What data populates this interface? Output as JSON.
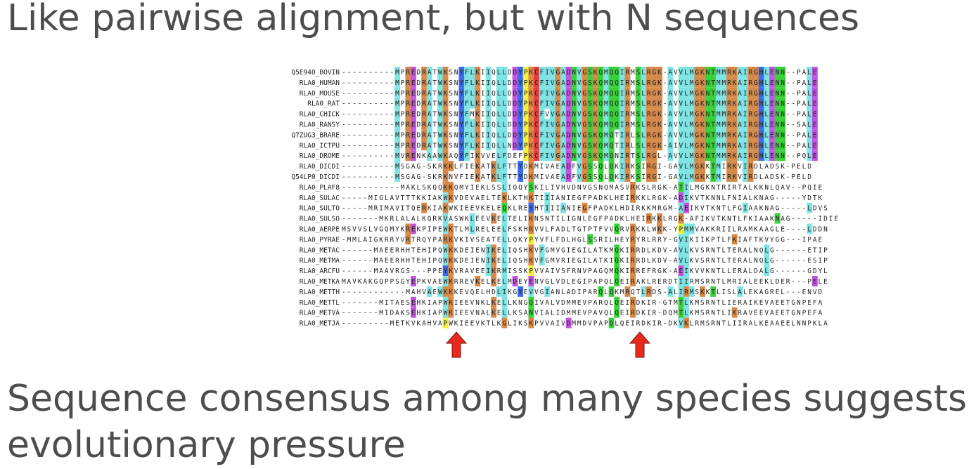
{
  "heading": "Like pairwise alignment, but with N sequences",
  "caption": "Sequence consensus among many species suggests evolutionary pressure",
  "alignment": {
    "names": [
      "Q5E940_BOVIN",
      "RLA0_HUMAN",
      "RLA0_MOUSE",
      "RLA0_RAT",
      "RLA0_CHICK",
      "RLA0_RANSY",
      "Q7ZUG3_BRARE",
      "RLA0_ICTPU",
      "RLA0_DROME",
      "RLA0_DICDI",
      "Q54LP0_DICDI",
      "RLA0_PLAF8",
      "RLA0_SULAC",
      "RLA0_SULTO",
      "RLA0_SULSO",
      "RLA0_AERPE",
      "RLA0_PYRAE",
      "RLA0_METAC",
      "RLA0_METMA",
      "RLA0_ARCFU",
      "RLA0_METKA",
      "RLA0_METTH",
      "RLA0_METTL",
      "RLA0_METVA",
      "RLA0_METJA"
    ],
    "sequences": [
      "----------MPREDRATWKSNYFLKIIQLLDDYPKCFIVGADNVGSKQMQQIRMSLRGK-AVVLMGKNTMMRKAIRGHLENN--PALE",
      "----------MPREDRATWKSNYFLKIIQLLDDYPKCFIVGADNVGSKQMQQIRMSLRGK-AVVLMGKNTMMRKAIRGHLENN--PALE",
      "----------MPREDRATWKSNYFLKIIQLLDDYPKCFIVGADNVGSKQMQQIRMSLRGK-AVVLMGKNTMMRKAIRGHLENN--PALE",
      "----------MPREDRATWKSNYFLKIIQLLDDYPKCFIVGADNVGSKQMQQIRMSLRGK-AVVLMGKNTMMRKAIRGHLENN--PALE",
      "----------MPREDRATWKSNYFMKIIQLLDDYPKCFVVGADNVGSKQMQQIRMSLRGK-AVVLMGKNTMMRKAIRGHLENN--PALE",
      "----------MPREDRATWKSNYFLKIIQLLDDYPKCFIVGADNVGSKQMQQIRMSLRGK-AVVLMGKNTMMRKAIRGHLENN--SALE",
      "----------MPREDRATWKSNYFLKIIQLLDDYPKCFIVGADNVGSKQMQTIRLSLRGK-AVVLMGKNTMMRKAIRGHLENN--PALE",
      "----------MPREDRATWKSNYFLKIIQLLNDYPKCFIVGADNVGSKQMQTIRLSLRGK-AIVLMGKNTMMRKAIRGHLENN--PALE",
      "----------MVRENKAAWKAQYFIKVVELFDEFPKCFIVGADNVGSKQMQNIRTSLRGL-AVVLMGKNTMMRKAIRGHLENN--PQLE",
      "----------MSGAG-SKRKKLFIEKATKLFTTYDKMIVAEADFVGSSQLQKIRKSIRGI-GAVLMGKKTMIRKVIRDLADSK-PELD",
      "----------MSGAG-SKRKNVFIEKATKLFTTYDKMIVAEADFVGSSQLQKIRKSIRGI-GAVLMGKKTMIRKVIRDLADSK-PELD",
      "-----------MAKLSKQQKKQMYIEKLSSLIQQYSKILIVHVDNVGSNQMASVRKSLRGK-ATILMGKNTRIRTALKKNLQAV--PQIE",
      "-----MIGLAVTTTKKIAKWKVDEVAELTEKLKTHKTIIIANIEGFPADKLHEIRKKLRGK-ADIKVTKNNLFNIALKNAG-----YDTK",
      "-----MRIMAVITQERKIAKWKIEEVKELEQKLREYHTIIIANIEGFPADKLHDIRKKMRGM-AEIKVTKNTLFGIAAKNAG-----LDVS",
      "-------MKRLALALKQRKVASWKLEEVKELTELIKNSNTILIGNLEGFPADKLHEIRKKLRGK-AFIKVTKNTLFKIAAKNAG-----IDIE",
      "MSVVSLVGQMYKREKPIPEWKTLMLRELEELFSKHRVVLFADLTGTPTFVVQRVRKKLWKK-YPMMVAKKRIILRAMKAAGLE----LDDN",
      "-MMLAIGKRRYVRTRQYPARKVKIVSEATELLQKYPYVFLFDLHGLSSRILHEYRYRLRRY-GVIKIIKPTLFKIAFTKVYGG---IPAE",
      "------MAEERHHTEHIPQWKKDEIENIKELIQSHKVFGMVGIEGILATKMQKIRRDLKDV-AVLKVSRNTLTERALNQLG------ETIP",
      "------MAEERHHTEHIPQWKKDEIENIKELIQSHKVFGMVRIEGILATKIQKIRRDLKDV-AVLKVSRNTLTERALNQLG------ESIP",
      "------MAAVRGS---PPEYKVRAVEEIKRMISSKPVVAIVSFRNVPAGQMQKIRREFRGK-AEIKVVKNTLLERALDALG------GDYL",
      "MAVKAKGQPPSGYEPKVAEWKRREVKELKELMDEYENVGLVDLEGIPAPQLQEIRAKLRERDTIIRMSRNTLMRIALEEKLDER---PELE",
      "------------MAHVAEWKKKEVQELHDLIKGYEVVGIANLADIPARQLQKMRQTLRDS-ALIRMSKKTLISLALEKAGREL---ENVD",
      "-------MITAESEHKIAPWKIEEVNKLKELLKNGQIVALVDMMEVPARQLQEIRDKIR-GTMTLKMSRNTLIERAIKEVAEETGNPEFA",
      "-------MIDAKSEHKIAPWKIEEVNALKELLKSANVIALIDMMEVPAVQLQEIRDKIR-DQMTLKMSRNTLIKRAVEEVAEETGNPEFA",
      "---------METKVKAHVAPWKIEEVKTLKGLIKSKPVVAIVDMMDVPAPQLQEIRDKIR-DKVKLRMSRNTLIIRALKEAAEELNNPKLA"
    ],
    "colors": {
      "cyan": "#7fe3e3",
      "orange": "#d68a4a",
      "green": "#3ad03a",
      "magenta": "#c055e0",
      "yellow": "#f2f23a",
      "red": "#e63a3a",
      "blue": "#3a6ae6",
      "text": "#222222",
      "arrow": "#e8291c"
    }
  }
}
